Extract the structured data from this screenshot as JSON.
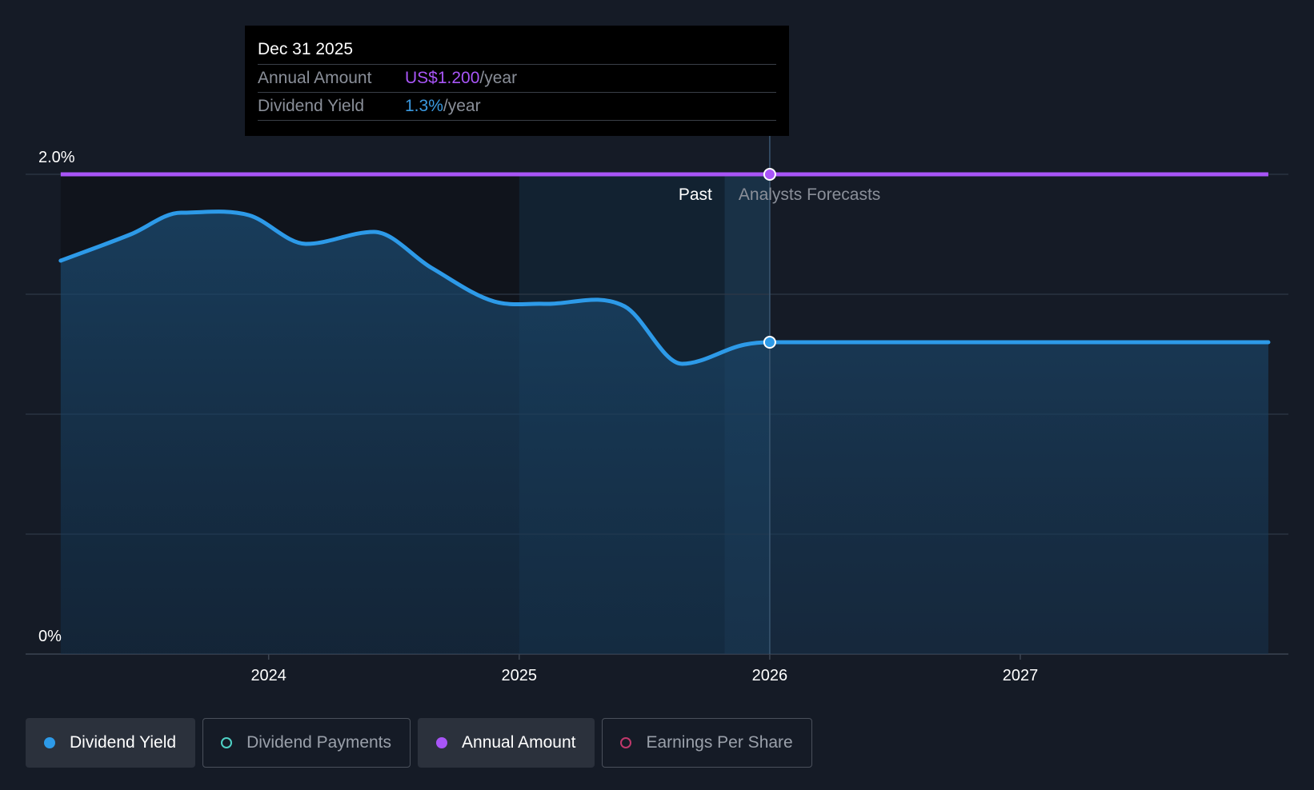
{
  "chart_data": {
    "type": "area",
    "series": [
      {
        "name": "Dividend Yield",
        "color": "#2d9ae8",
        "unit": "%",
        "x": [
          2023.17,
          2023.45,
          2023.65,
          2023.92,
          2024.15,
          2024.42,
          2024.65,
          2024.9,
          2025.1,
          2025.42,
          2025.65,
          2025.9,
          2026.0,
          2026.5,
          2027.0,
          2027.5,
          2027.99
        ],
        "values": [
          1.64,
          1.75,
          1.84,
          1.83,
          1.71,
          1.76,
          1.61,
          1.47,
          1.46,
          1.45,
          1.21,
          1.29,
          1.3,
          1.3,
          1.3,
          1.3,
          1.3
        ]
      },
      {
        "name": "Annual Amount",
        "color": "#a855f7",
        "unit": "US$",
        "x": [
          2023.17,
          2026.0,
          2027.99
        ],
        "values": [
          1.2,
          1.2,
          1.2
        ]
      }
    ],
    "xlim": [
      2023.03,
      2028.07
    ],
    "ylim": [
      0,
      2.0
    ],
    "y_tick_labels": [
      {
        "value": 2.0,
        "label": "2.0%"
      },
      {
        "value": 0,
        "label": "0%"
      }
    ],
    "x_ticks": [
      2024,
      2025,
      2026,
      2027
    ],
    "x_tick_labels": [
      "2024",
      "2025",
      "2026",
      "2027"
    ],
    "divider_x": 2026.0,
    "forecast_shade_start": 2025.82,
    "past_shade_start": 2025.0,
    "region_labels": {
      "past": "Past",
      "forecast": "Analysts Forecasts"
    },
    "hover_x": 2026.0
  },
  "tooltip": {
    "date": "Dec 31 2025",
    "rows": [
      {
        "label": "Annual Amount",
        "value": "US$1.200",
        "suffix": "/year"
      },
      {
        "label": "Dividend Yield",
        "value": "1.3%",
        "suffix": "/year"
      }
    ]
  },
  "legend": [
    {
      "label": "Dividend Yield",
      "color": "#2d9ae8",
      "active": true,
      "filled": true
    },
    {
      "label": "Dividend Payments",
      "color": "#4fd1c5",
      "active": false,
      "filled": false
    },
    {
      "label": "Annual Amount",
      "color": "#a855f7",
      "active": true,
      "filled": true
    },
    {
      "label": "Earnings Per Share",
      "color": "#c0386b",
      "active": false,
      "filled": false
    }
  ]
}
